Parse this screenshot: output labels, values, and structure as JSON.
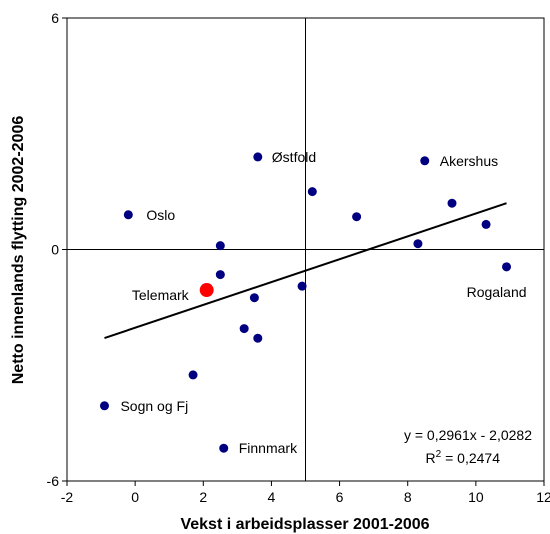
{
  "chart_data": {
    "type": "scatter",
    "title": "",
    "xlabel": "Vekst i arbeidsplasser 2001-2006",
    "ylabel": "Netto innenlands flytting 2002-2006",
    "xlim": [
      -2,
      12
    ],
    "ylim": [
      -6,
      6
    ],
    "x_ticks": [
      "-2",
      "0",
      "2",
      "4",
      "6",
      "8",
      "10",
      "12"
    ],
    "y_ticks": [
      "-6",
      "0",
      "6"
    ],
    "grid": false,
    "points": [
      {
        "label": "Oslo",
        "x": -0.2,
        "y": 0.9
      },
      {
        "label": "Østfold",
        "x": 3.6,
        "y": 2.4
      },
      {
        "label": "Akershus",
        "x": 8.5,
        "y": 2.3
      },
      {
        "label": "",
        "x": 5.2,
        "y": 1.5
      },
      {
        "label": "",
        "x": 6.5,
        "y": 0.85
      },
      {
        "label": "",
        "x": 9.3,
        "y": 1.2
      },
      {
        "label": "",
        "x": 10.3,
        "y": 0.65
      },
      {
        "label": "",
        "x": 8.3,
        "y": 0.15
      },
      {
        "label": "",
        "x": 2.5,
        "y": 0.1
      },
      {
        "label": "Rogaland",
        "x": 10.9,
        "y": -0.45
      },
      {
        "label": "",
        "x": 2.5,
        "y": -0.65
      },
      {
        "label": "Telemark",
        "x": 2.1,
        "y": -1.05,
        "highlight": true
      },
      {
        "label": "",
        "x": 4.9,
        "y": -0.95
      },
      {
        "label": "",
        "x": 3.5,
        "y": -1.25
      },
      {
        "label": "",
        "x": 3.2,
        "y": -2.05
      },
      {
        "label": "",
        "x": 3.6,
        "y": -2.3
      },
      {
        "label": "",
        "x": 1.7,
        "y": -3.25
      },
      {
        "label": "Sogn og Fj",
        "x": -0.9,
        "y": -4.05
      },
      {
        "label": "Finnmark",
        "x": 2.6,
        "y": -5.15
      }
    ],
    "trendline": {
      "slope": 0.2961,
      "intercept": -2.0282,
      "x_range": [
        -0.9,
        10.9
      ]
    },
    "equation_line1": "y = 0,2961x - 2,0282",
    "equation_line2_prefix": "R",
    "equation_line2_sup": "2",
    "equation_line2_suffix": " = 0,2474",
    "colors": {
      "point": "#000080",
      "highlight": "#ff0000",
      "line": "#000000"
    }
  }
}
